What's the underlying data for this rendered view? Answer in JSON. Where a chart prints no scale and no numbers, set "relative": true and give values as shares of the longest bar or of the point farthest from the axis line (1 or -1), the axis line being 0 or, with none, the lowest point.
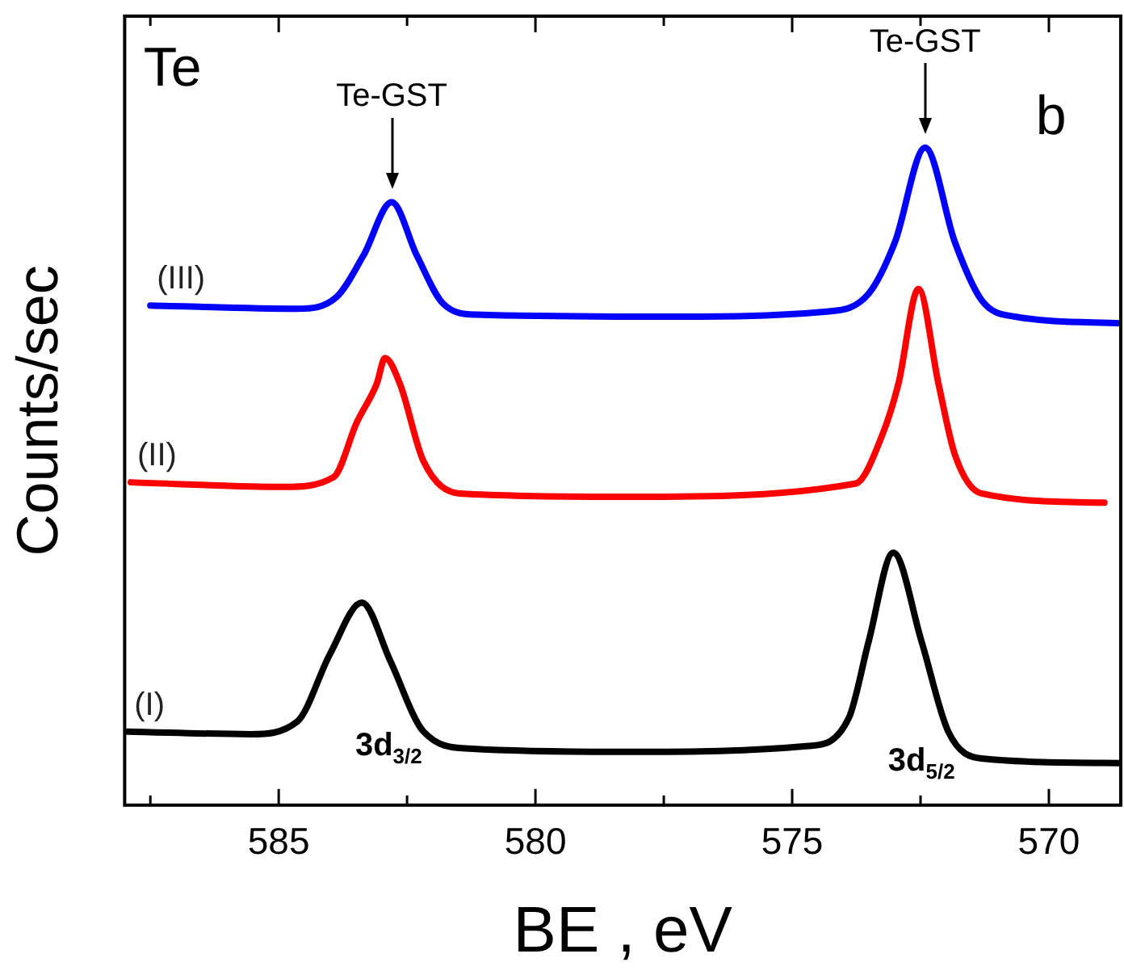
{
  "chart_data": {
    "type": "line",
    "relative": true,
    "xlabel": "BE , eV",
    "ylabel": "Counts/sec",
    "xlim": [
      588,
      568.6
    ],
    "xticks": [
      {
        "value": 587.5,
        "label": null
      },
      585,
      {
        "value": 582.5,
        "label": null
      },
      580,
      {
        "value": 577.5,
        "label": null
      },
      575,
      {
        "value": 572.5,
        "label": null
      },
      570
    ],
    "tick_labels": "x",
    "marker": "none",
    "line_style": "solid",
    "legend": false,
    "annotations": [
      "Te",
      "b",
      "3d$_{3/2}$",
      "3d$_{5/2}$",
      {
        "text": "Te-GST",
        "x": 582.8,
        "y": 0.917
      },
      {
        "text": "Te-GST",
        "x": 572.41,
        "y": 1.0
      }
    ],
    "series": [
      {
        "name": "(III)",
        "color": "#0000ff",
        "x": [
          587.5,
          584.64,
          583.87,
          583.35,
          582.8,
          582.31,
          581.8,
          581.15,
          577.52,
          574.29,
          573.51,
          573.0,
          572.41,
          571.83,
          571.31,
          570.66,
          568.6
        ],
        "values": [
          0.76,
          0.755,
          0.773,
          0.836,
          0.917,
          0.836,
          0.763,
          0.746,
          0.743,
          0.751,
          0.778,
          0.856,
          1.0,
          0.856,
          0.768,
          0.743,
          0.733
        ]
      },
      {
        "name": "(II)",
        "color": "#ff0000",
        "x": [
          587.88,
          584.9,
          583.93,
          583.48,
          583.09,
          582.93,
          582.64,
          582.18,
          581.47,
          578.17,
          573.77,
          573.25,
          572.93,
          572.54,
          572.15,
          571.83,
          571.31,
          568.92
        ],
        "values": [
          0.491,
          0.484,
          0.499,
          0.582,
          0.641,
          0.68,
          0.641,
          0.523,
          0.474,
          0.469,
          0.489,
          0.562,
          0.641,
          0.785,
          0.641,
          0.533,
          0.474,
          0.46
        ]
      },
      {
        "name": "(I)",
        "color": "#000000",
        "x": [
          587.94,
          585.55,
          584.64,
          584.0,
          583.38,
          582.83,
          582.18,
          581.28,
          578.17,
          574.68,
          573.9,
          573.51,
          573.03,
          572.48,
          571.96,
          571.31,
          568.6
        ],
        "values": [
          0.112,
          0.108,
          0.127,
          0.23,
          0.308,
          0.22,
          0.112,
          0.086,
          0.081,
          0.09,
          0.132,
          0.249,
          0.384,
          0.249,
          0.112,
          0.071,
          0.064
        ]
      }
    ]
  }
}
